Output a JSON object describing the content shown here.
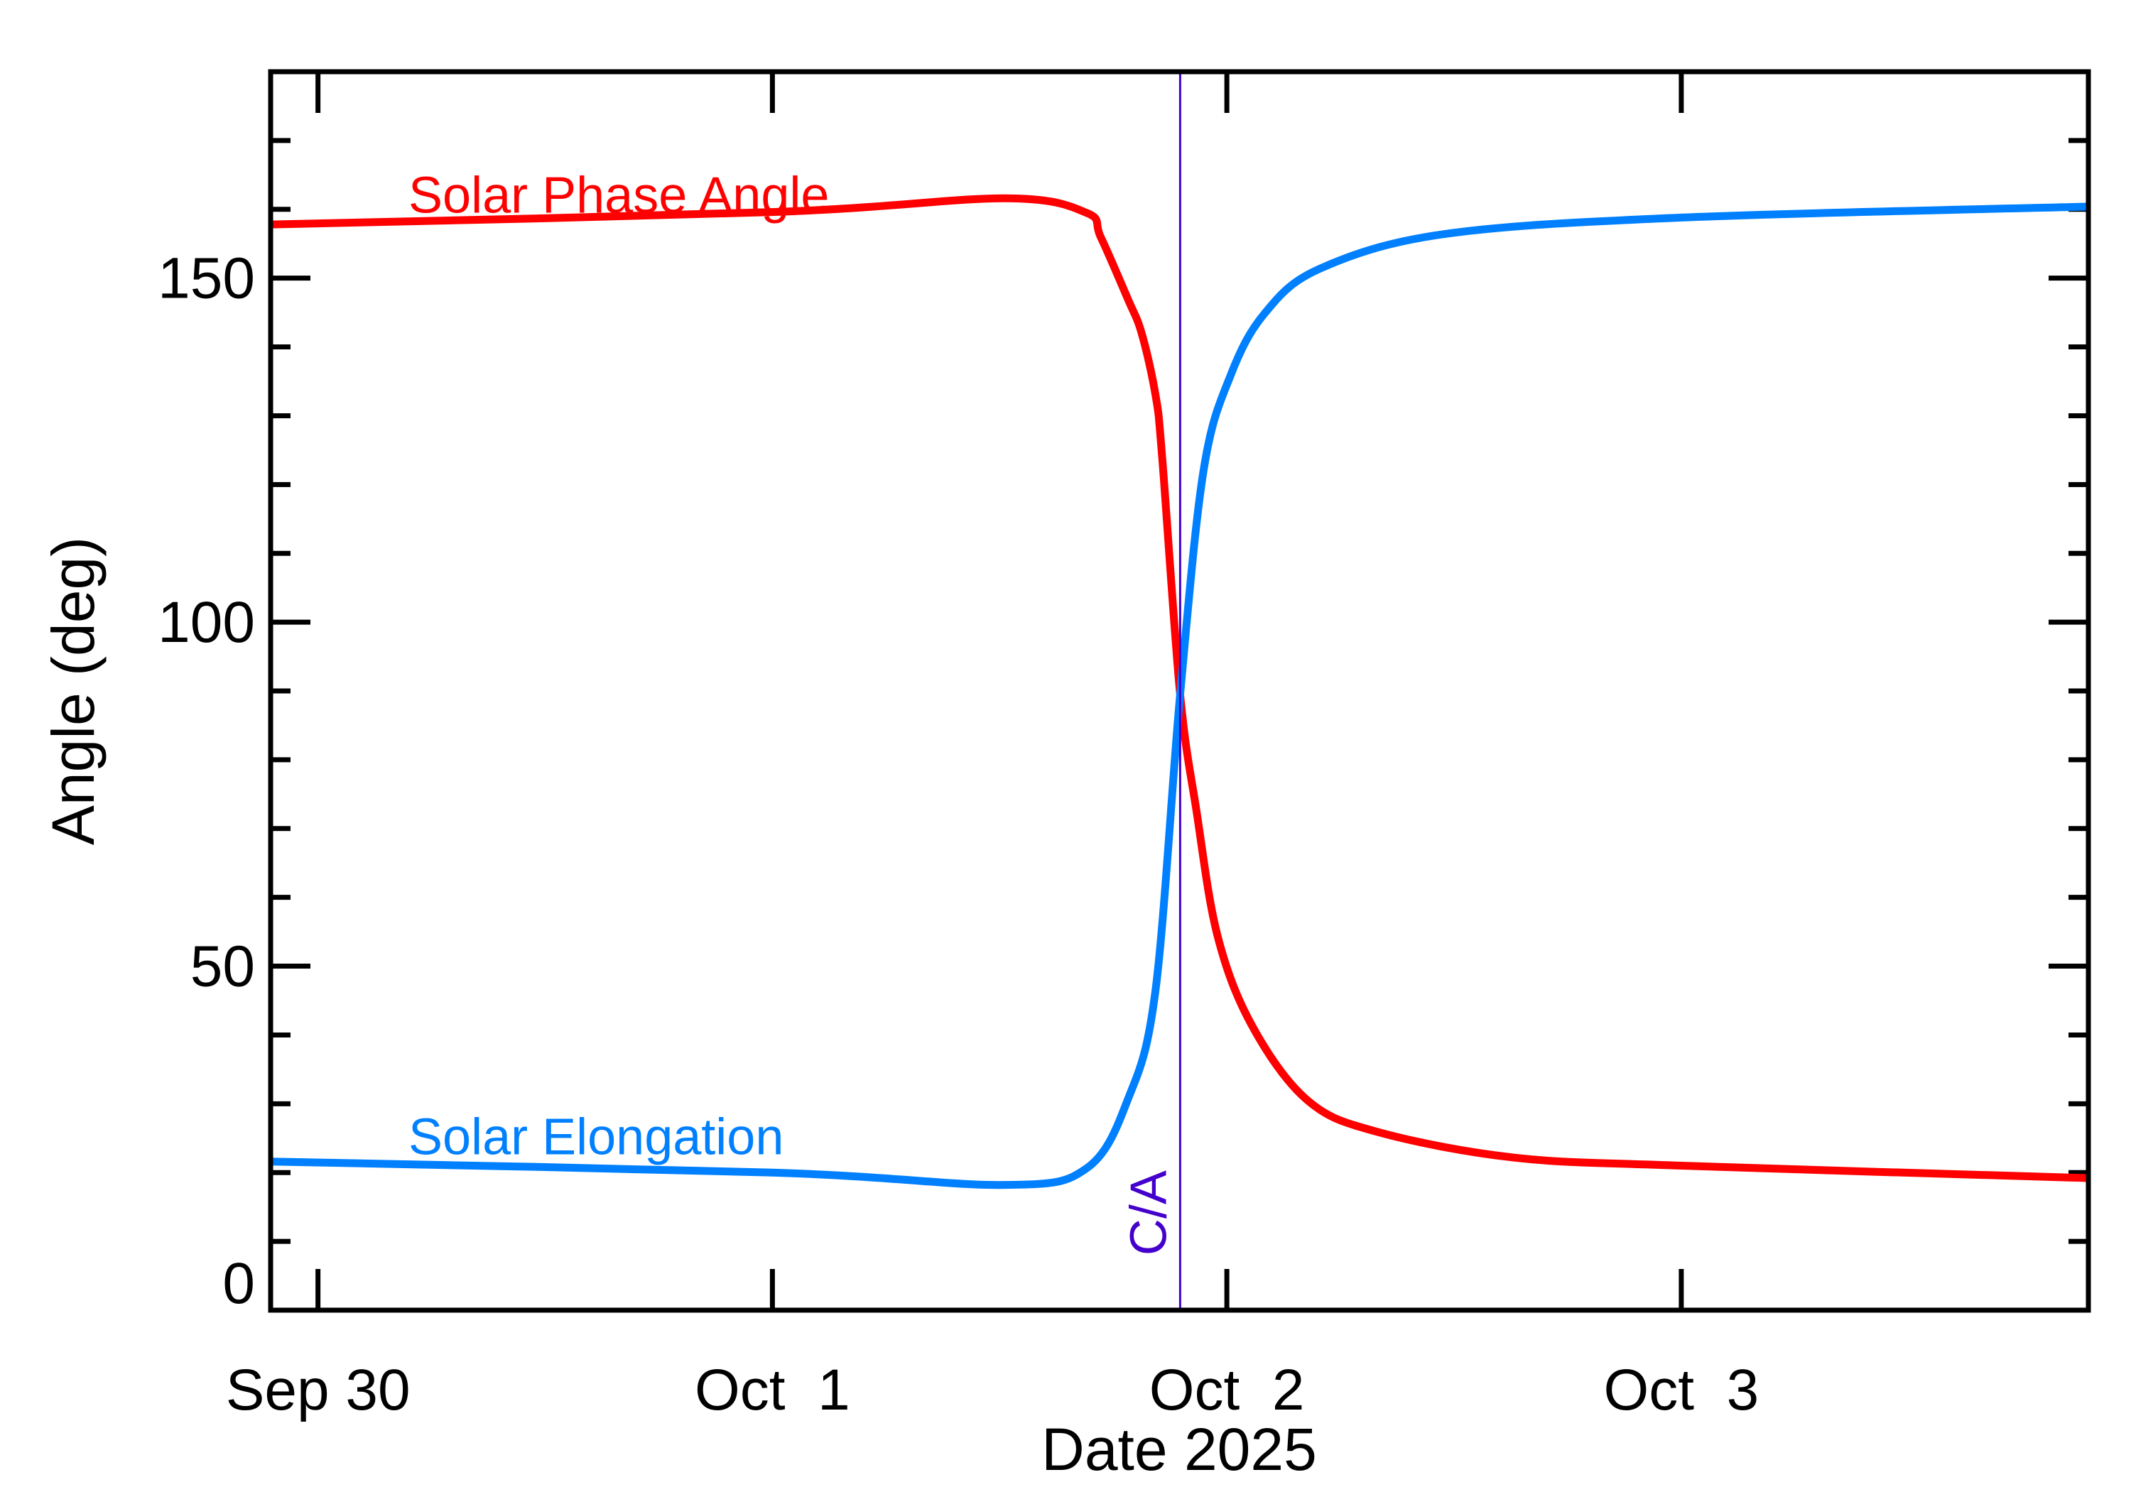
{
  "chart_data": {
    "type": "line",
    "title": "",
    "xlabel": "Date 2025",
    "ylabel": "Angle (deg)",
    "xlim": [
      "2025-09-29T21:30",
      "2025-10-03T21:30"
    ],
    "ylim": [
      0,
      180
    ],
    "x_ticks": [
      {
        "date": "2025-09-30T00:00",
        "label": "Sep 30"
      },
      {
        "date": "2025-10-01T00:00",
        "label": "Oct  1"
      },
      {
        "date": "2025-10-02T00:00",
        "label": "Oct  2"
      },
      {
        "date": "2025-10-03T00:00",
        "label": "Oct  3"
      }
    ],
    "y_ticks": [
      0,
      50,
      100,
      150
    ],
    "y_tick_labels": [
      "0",
      "50",
      "100",
      "150"
    ],
    "y_minor_step": 10,
    "grid": false,
    "legend": "inline labels",
    "series": [
      {
        "name": "Solar Phase Angle",
        "color": "#ff0000",
        "x": [
          "2025-09-29T21:30",
          "2025-10-01T00:00",
          "2025-10-01T12:15",
          "2025-10-01T16:35",
          "2025-10-01T17:20",
          "2025-10-01T18:46",
          "2025-10-01T19:30",
          "2025-10-01T20:14",
          "2025-10-01T20:35",
          "2025-10-01T21:32",
          "2025-10-01T22:24",
          "2025-10-01T23:30",
          "2025-10-02T01:18",
          "2025-10-02T04:13",
          "2025-10-02T07:50",
          "2025-10-02T15:06",
          "2025-10-03T00:00",
          "2025-10-03T21:30"
        ],
        "y": [
          157.8,
          159.6,
          161.6,
          159.5,
          156,
          147,
          142,
          133,
          124,
          89.5,
          72.5,
          54.5,
          41.5,
          30.6,
          26,
          22.2,
          21,
          19.2
        ]
      },
      {
        "name": "Solar Elongation",
        "color": "#0080ff",
        "x": [
          "2025-09-29T21:30",
          "2025-10-01T00:00",
          "2025-10-01T12:15",
          "2025-10-01T16:35",
          "2025-10-01T18:46",
          "2025-10-01T20:14",
          "2025-10-01T21:32",
          "2025-10-01T22:46",
          "2025-10-02T00:13",
          "2025-10-02T02:02",
          "2025-10-02T04:56",
          "2025-10-02T11:28",
          "2025-10-03T00:00",
          "2025-10-03T21:30"
        ],
        "y": [
          21.6,
          20,
          18.2,
          20.6,
          30.6,
          46.5,
          89.5,
          122,
          136,
          145,
          151.4,
          156.4,
          158.8,
          160.4
        ]
      }
    ],
    "annotations": [
      {
        "text": "C/A",
        "date": "2025-10-01T21:32",
        "type": "vertical-line",
        "color": "#4400cc"
      }
    ]
  }
}
